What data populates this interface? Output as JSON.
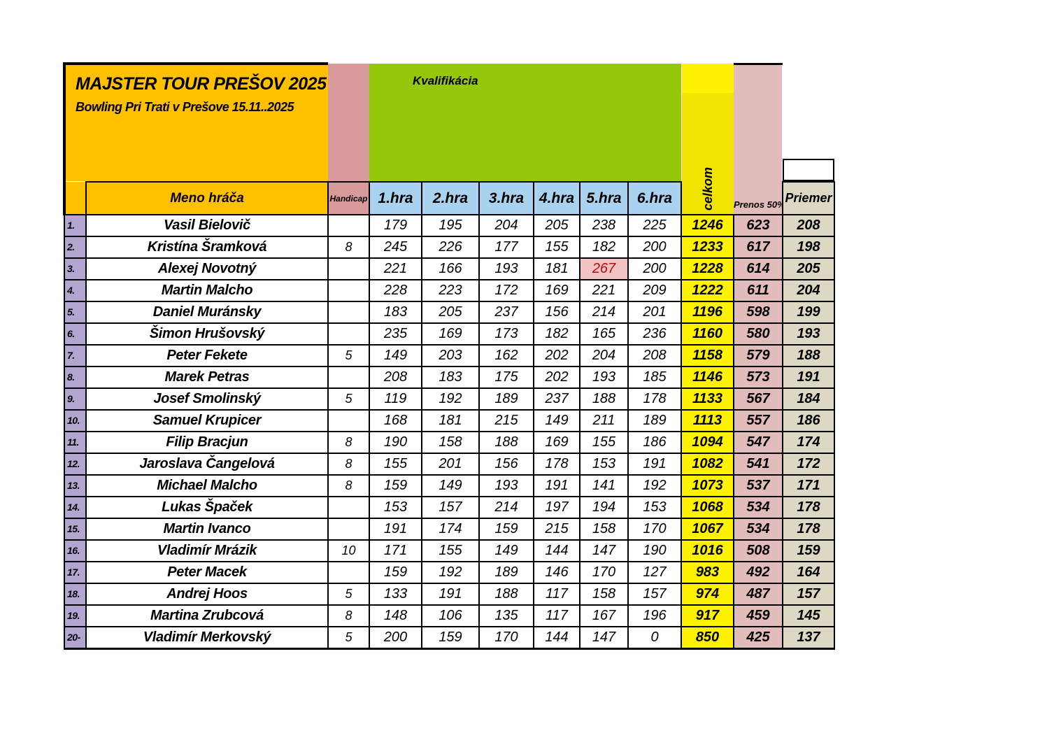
{
  "header": {
    "title": "MAJSTER TOUR PREŠOV 2025",
    "subtitle": "Bowling Pri Trati v Prešove 15.11..2025",
    "section_label": "Kvalifikácia",
    "name_col": "Meno hráča",
    "handicap_col": "Handicap",
    "game_cols": [
      "1.hra",
      "2.hra",
      "3.hra",
      "4.hra",
      "5.hra",
      "6.hra"
    ],
    "total_col": "celkom",
    "transfer_col": "Prenos 50%",
    "average_col": "Priemer"
  },
  "colors": {
    "orange": "#FFC000",
    "green": "#95C70B",
    "blue": "#A9D2F0",
    "yellow_bright": "#FFF200",
    "yellow_deep": "#F0E400",
    "pink_dark": "#D99A9B",
    "pink_light": "#E2BBBB",
    "purple": "#B2A5CF",
    "tan": "#DCD8C4",
    "highlight_bg": "#F3C3C3",
    "highlight_text": "#AF0E10",
    "border": "#000000"
  },
  "rows": [
    {
      "rank": "1.",
      "name": "Vasil Bielovič",
      "handicap": "",
      "games": [
        "179",
        "195",
        "204",
        "205",
        "238",
        "225"
      ],
      "total": "1246",
      "transfer": "623",
      "average": "208",
      "highlight_game_index": null
    },
    {
      "rank": "2.",
      "name": "Kristína Šramková",
      "handicap": "8",
      "games": [
        "245",
        "226",
        "177",
        "155",
        "182",
        "200"
      ],
      "total": "1233",
      "transfer": "617",
      "average": "198",
      "highlight_game_index": null
    },
    {
      "rank": "3.",
      "name": "Alexej Novotný",
      "handicap": "",
      "games": [
        "221",
        "166",
        "193",
        "181",
        "267",
        "200"
      ],
      "total": "1228",
      "transfer": "614",
      "average": "205",
      "highlight_game_index": 4
    },
    {
      "rank": "4.",
      "name": "Martin Malcho",
      "handicap": "",
      "games": [
        "228",
        "223",
        "172",
        "169",
        "221",
        "209"
      ],
      "total": "1222",
      "transfer": "611",
      "average": "204",
      "highlight_game_index": null
    },
    {
      "rank": "5.",
      "name": "Daniel Muránsky",
      "handicap": "",
      "games": [
        "183",
        "205",
        "237",
        "156",
        "214",
        "201"
      ],
      "total": "1196",
      "transfer": "598",
      "average": "199",
      "highlight_game_index": null
    },
    {
      "rank": "6.",
      "name": "Šimon Hrušovský",
      "handicap": "",
      "games": [
        "235",
        "169",
        "173",
        "182",
        "165",
        "236"
      ],
      "total": "1160",
      "transfer": "580",
      "average": "193",
      "highlight_game_index": null
    },
    {
      "rank": "7.",
      "name": "Peter Fekete",
      "handicap": "5",
      "games": [
        "149",
        "203",
        "162",
        "202",
        "204",
        "208"
      ],
      "total": "1158",
      "transfer": "579",
      "average": "188",
      "highlight_game_index": null
    },
    {
      "rank": "8.",
      "name": "Marek Petras",
      "handicap": "",
      "games": [
        "208",
        "183",
        "175",
        "202",
        "193",
        "185"
      ],
      "total": "1146",
      "transfer": "573",
      "average": "191",
      "highlight_game_index": null
    },
    {
      "rank": "9.",
      "name": "Josef Smolinský",
      "handicap": "5",
      "games": [
        "119",
        "192",
        "189",
        "237",
        "188",
        "178"
      ],
      "total": "1133",
      "transfer": "567",
      "average": "184",
      "highlight_game_index": null
    },
    {
      "rank": "10.",
      "name": "Samuel Krupicer",
      "handicap": "",
      "games": [
        "168",
        "181",
        "215",
        "149",
        "211",
        "189"
      ],
      "total": "1113",
      "transfer": "557",
      "average": "186",
      "highlight_game_index": null
    },
    {
      "rank": "11.",
      "name": "Filip Bracjun",
      "handicap": "8",
      "games": [
        "190",
        "158",
        "188",
        "169",
        "155",
        "186"
      ],
      "total": "1094",
      "transfer": "547",
      "average": "174",
      "highlight_game_index": null
    },
    {
      "rank": "12.",
      "name": "Jaroslava Čangelová",
      "handicap": "8",
      "games": [
        "155",
        "201",
        "156",
        "178",
        "153",
        "191"
      ],
      "total": "1082",
      "transfer": "541",
      "average": "172",
      "highlight_game_index": null
    },
    {
      "rank": "13.",
      "name": "Michael Malcho",
      "handicap": "8",
      "games": [
        "159",
        "149",
        "193",
        "191",
        "141",
        "192"
      ],
      "total": "1073",
      "transfer": "537",
      "average": "171",
      "highlight_game_index": null
    },
    {
      "rank": "14.",
      "name": "Lukas Špaček",
      "handicap": "",
      "games": [
        "153",
        "157",
        "214",
        "197",
        "194",
        "153"
      ],
      "total": "1068",
      "transfer": "534",
      "average": "178",
      "highlight_game_index": null
    },
    {
      "rank": "15.",
      "name": "Martin Ivanco",
      "handicap": "",
      "games": [
        "191",
        "174",
        "159",
        "215",
        "158",
        "170"
      ],
      "total": "1067",
      "transfer": "534",
      "average": "178",
      "highlight_game_index": null
    },
    {
      "rank": "16.",
      "name": "Vladimír Mrázik",
      "handicap": "10",
      "games": [
        "171",
        "155",
        "149",
        "144",
        "147",
        "190"
      ],
      "total": "1016",
      "transfer": "508",
      "average": "159",
      "highlight_game_index": null
    },
    {
      "rank": "17.",
      "name": "Peter Macek",
      "handicap": "",
      "games": [
        "159",
        "192",
        "189",
        "146",
        "170",
        "127"
      ],
      "total": "983",
      "transfer": "492",
      "average": "164",
      "highlight_game_index": null
    },
    {
      "rank": "18.",
      "name": "Andrej Hoos",
      "handicap": "5",
      "games": [
        "133",
        "191",
        "188",
        "117",
        "158",
        "157"
      ],
      "total": "974",
      "transfer": "487",
      "average": "157",
      "highlight_game_index": null
    },
    {
      "rank": "19.",
      "name": "Martina Zrubcová",
      "handicap": "8",
      "games": [
        "148",
        "106",
        "135",
        "117",
        "167",
        "196"
      ],
      "total": "917",
      "transfer": "459",
      "average": "145",
      "highlight_game_index": null
    },
    {
      "rank": "20-",
      "name": "Vladimír Merkovský",
      "handicap": "5",
      "games": [
        "200",
        "159",
        "170",
        "144",
        "147",
        "0"
      ],
      "total": "850",
      "transfer": "425",
      "average": "137",
      "highlight_game_index": null
    }
  ]
}
